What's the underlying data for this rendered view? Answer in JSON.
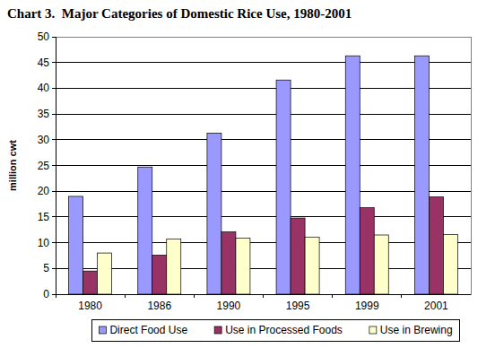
{
  "chart_data": {
    "type": "bar",
    "title": "Chart 3.  Major Categories of Domestic Rice Use, 1980-2001",
    "y_label": "million cwt",
    "categories": [
      "1980",
      "1986",
      "1990",
      "1995",
      "1999",
      "2001"
    ],
    "series": [
      {
        "name": "Direct Food Use",
        "color": "#9999ff",
        "values": [
          19.0,
          24.7,
          31.3,
          41.6,
          46.3,
          46.3
        ]
      },
      {
        "name": "Use in Processed Foods",
        "color": "#993366",
        "values": [
          4.5,
          7.6,
          12.1,
          14.8,
          16.8,
          18.9
        ]
      },
      {
        "name": "Use in Brewing",
        "color": "#ffffcc",
        "values": [
          8.0,
          10.7,
          10.9,
          11.1,
          11.5,
          11.6
        ]
      }
    ],
    "ylim": [
      0,
      50
    ],
    "yticks": [
      0,
      5,
      10,
      15,
      20,
      25,
      30,
      35,
      40,
      45,
      50
    ],
    "grid": true,
    "legend": "bottom"
  }
}
